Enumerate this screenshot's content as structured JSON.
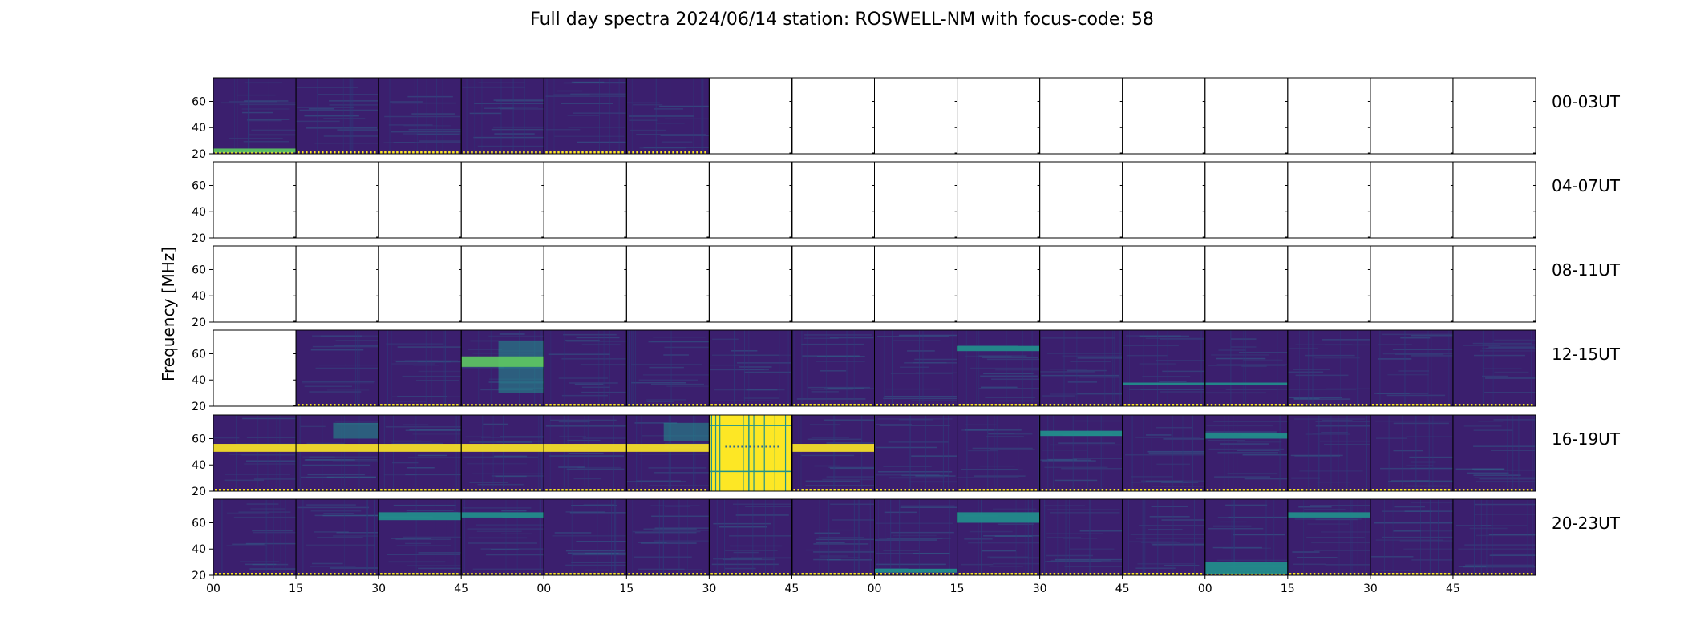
{
  "chart_data": {
    "type": "heatmap",
    "title": "Full day spectra 2024/06/14 station: ROSWELL-NM with focus-code: 58",
    "ylabel": "Frequency [MHz]",
    "xlabel": "",
    "ylim": [
      20,
      78
    ],
    "yticks": [
      "20",
      "40",
      "60"
    ],
    "xticks": [
      "00",
      "15",
      "30",
      "45",
      "00",
      "15",
      "30",
      "45",
      "00",
      "15",
      "30",
      "45",
      "00",
      "15",
      "30",
      "45"
    ],
    "panels_per_row": 16,
    "row_labels": [
      "00-03UT",
      "04-07UT",
      "08-11UT",
      "12-15UT",
      "16-19UT",
      "20-23UT"
    ],
    "colormap": {
      "low": "#440154",
      "base": "#3b1f6e",
      "mid": "#31688e",
      "teal": "#21918c",
      "green": "#5ec962",
      "high": "#fde725"
    },
    "rows": [
      {
        "label": "00-03UT",
        "panels": [
          "data",
          "data",
          "data",
          "data",
          "data",
          "data",
          "empty",
          "empty",
          "empty",
          "empty",
          "empty",
          "empty",
          "empty",
          "empty",
          "empty",
          "empty"
        ]
      },
      {
        "label": "04-07UT",
        "panels": [
          "empty",
          "empty",
          "empty",
          "empty",
          "empty",
          "empty",
          "empty",
          "empty",
          "empty",
          "empty",
          "empty",
          "empty",
          "empty",
          "empty",
          "empty",
          "empty"
        ]
      },
      {
        "label": "08-11UT",
        "panels": [
          "empty",
          "empty",
          "empty",
          "empty",
          "empty",
          "empty",
          "empty",
          "empty",
          "empty",
          "empty",
          "empty",
          "empty",
          "empty",
          "empty",
          "empty",
          "empty"
        ]
      },
      {
        "label": "12-15UT",
        "panels": [
          "empty",
          "data",
          "data",
          "data",
          "data",
          "data",
          "data",
          "data",
          "data",
          "data",
          "data",
          "data",
          "data",
          "data",
          "data",
          "data"
        ]
      },
      {
        "label": "16-19UT",
        "panels": [
          "data",
          "data",
          "data",
          "data",
          "data",
          "data",
          "saturated",
          "data",
          "data",
          "data",
          "data",
          "data",
          "data",
          "data",
          "data",
          "data"
        ]
      },
      {
        "label": "20-23UT",
        "panels": [
          "data",
          "data",
          "data",
          "data",
          "data",
          "data",
          "data",
          "data",
          "data",
          "data",
          "data",
          "data",
          "data",
          "data",
          "data",
          "data"
        ]
      }
    ],
    "features": [
      {
        "row": 0,
        "panel": 0,
        "band": [
          21,
          24
        ],
        "level": "green"
      },
      {
        "row": 3,
        "panel": 3,
        "band": [
          30,
          70
        ],
        "level": "teal"
      },
      {
        "row": 3,
        "panel": 3,
        "band": [
          50,
          58
        ],
        "level": "green"
      },
      {
        "row": 3,
        "panel": 9,
        "band": [
          62,
          66
        ],
        "level": "teal"
      },
      {
        "row": 3,
        "panel": 11,
        "band": [
          36,
          38
        ],
        "level": "teal"
      },
      {
        "row": 3,
        "panel": 12,
        "band": [
          36,
          38
        ],
        "level": "teal"
      },
      {
        "row": 4,
        "panel": 0,
        "band": [
          50,
          56
        ],
        "level": "high"
      },
      {
        "row": 4,
        "panel": 1,
        "band": [
          50,
          56
        ],
        "level": "high"
      },
      {
        "row": 4,
        "panel": 2,
        "band": [
          50,
          56
        ],
        "level": "high"
      },
      {
        "row": 4,
        "panel": 3,
        "band": [
          50,
          56
        ],
        "level": "high"
      },
      {
        "row": 4,
        "panel": 4,
        "band": [
          50,
          56
        ],
        "level": "high"
      },
      {
        "row": 4,
        "panel": 5,
        "band": [
          50,
          56
        ],
        "level": "high"
      },
      {
        "row": 4,
        "panel": 7,
        "band": [
          50,
          56
        ],
        "level": "high"
      },
      {
        "row": 4,
        "panel": 1,
        "band": [
          60,
          72
        ],
        "level": "teal"
      },
      {
        "row": 4,
        "panel": 5,
        "band": [
          58,
          72
        ],
        "level": "teal"
      },
      {
        "row": 4,
        "panel": 10,
        "band": [
          62,
          66
        ],
        "level": "teal"
      },
      {
        "row": 4,
        "panel": 12,
        "band": [
          60,
          64
        ],
        "level": "teal"
      },
      {
        "row": 5,
        "panel": 2,
        "band": [
          62,
          68
        ],
        "level": "teal"
      },
      {
        "row": 5,
        "panel": 3,
        "band": [
          64,
          68
        ],
        "level": "teal"
      },
      {
        "row": 5,
        "panel": 8,
        "band": [
          22,
          25
        ],
        "level": "teal"
      },
      {
        "row": 5,
        "panel": 9,
        "band": [
          60,
          68
        ],
        "level": "teal"
      },
      {
        "row": 5,
        "panel": 12,
        "band": [
          21,
          30
        ],
        "level": "teal"
      },
      {
        "row": 5,
        "panel": 13,
        "band": [
          64,
          68
        ],
        "level": "teal"
      }
    ]
  }
}
